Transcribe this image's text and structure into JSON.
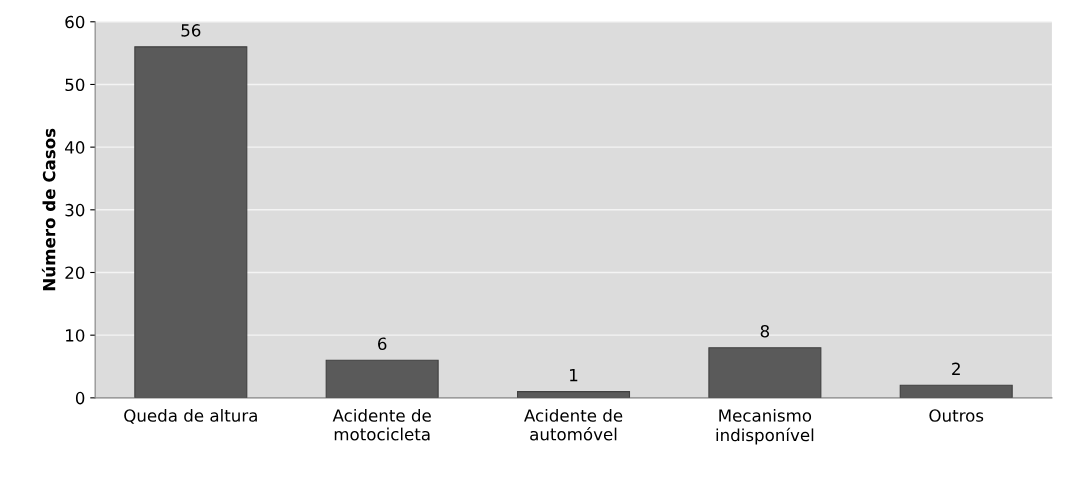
{
  "chart_data": {
    "type": "bar",
    "ylabel": "Número de Casos",
    "categories": [
      "Queda de altura",
      "Acidente de\nmotocicleta",
      "Acidente de\nautomóvel",
      "Mecanismo\nindisponível",
      "Outros"
    ],
    "values": [
      56,
      6,
      1,
      8,
      2
    ],
    "color": "#5a5a5a",
    "ylim": [
      0,
      60
    ],
    "yticks": [
      0,
      10,
      20,
      30,
      40,
      50,
      60
    ],
    "grid": "y",
    "data_labels": true
  }
}
